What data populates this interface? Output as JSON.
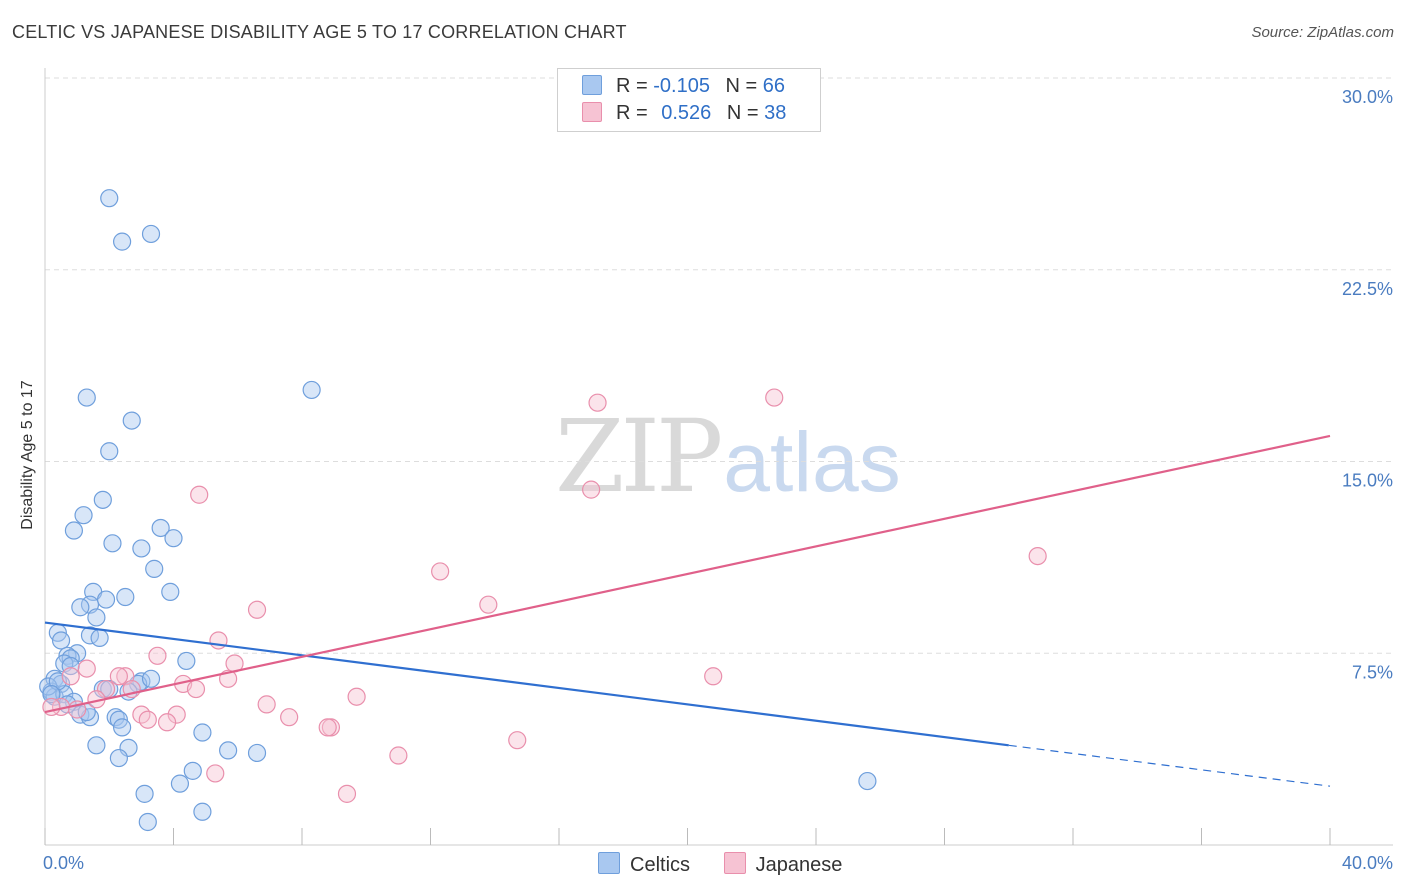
{
  "title": "CELTIC VS JAPANESE DISABILITY AGE 5 TO 17 CORRELATION CHART",
  "source": "Source: ZipAtlas.com",
  "watermark": {
    "zip": "ZIP",
    "atlas": "atlas"
  },
  "legend": {
    "rows": [
      {
        "r_label": "R =",
        "r_value": "-0.105",
        "n_label": "N =",
        "n_value": "66"
      },
      {
        "r_label": "R =",
        "r_value": "0.526",
        "n_label": "N =",
        "n_value": "38"
      }
    ]
  },
  "bottom_legend": {
    "celtics": "Celtics",
    "japanese": "Japanese"
  },
  "colors": {
    "celtics_fill": "#a9c8f0",
    "celtics_stroke": "#6f9fdc",
    "celtics_line": "#2f6fd0",
    "japanese_fill": "#f6c3d3",
    "japanese_stroke": "#e98fac",
    "japanese_line": "#e0608a",
    "tick_text": "#4a7cc0",
    "grid": "#dddddd"
  },
  "chart_data": {
    "type": "scatter",
    "title": "CELTIC VS JAPANESE DISABILITY AGE 5 TO 17 CORRELATION CHART",
    "xlabel": "",
    "ylabel": "Disability Age 5 to 17",
    "xlim": [
      0,
      40
    ],
    "ylim": [
      0,
      30
    ],
    "x_tick_labels": [
      "0.0%",
      "40.0%"
    ],
    "y_ticks": [
      7.5,
      15.0,
      22.5,
      30.0
    ],
    "y_tick_labels": [
      "7.5%",
      "15.0%",
      "22.5%",
      "30.0%"
    ],
    "series": [
      {
        "name": "Celtics",
        "r": -0.105,
        "n": 66,
        "trend": {
          "x0": 0,
          "y0": 8.7,
          "x1": 30.0,
          "y1": 3.9,
          "dash_x1": 40,
          "dash_y1": 2.3
        },
        "points": [
          [
            2.0,
            25.3
          ],
          [
            2.4,
            23.6
          ],
          [
            3.3,
            23.9
          ],
          [
            8.3,
            17.8
          ],
          [
            1.3,
            17.5
          ],
          [
            2.7,
            16.6
          ],
          [
            2.0,
            15.4
          ],
          [
            1.8,
            13.5
          ],
          [
            1.2,
            12.9
          ],
          [
            0.9,
            12.3
          ],
          [
            3.6,
            12.4
          ],
          [
            4.0,
            12.0
          ],
          [
            2.1,
            11.8
          ],
          [
            3.0,
            11.6
          ],
          [
            3.4,
            10.8
          ],
          [
            1.5,
            9.9
          ],
          [
            2.5,
            9.7
          ],
          [
            1.9,
            9.6
          ],
          [
            3.9,
            9.9
          ],
          [
            1.4,
            9.4
          ],
          [
            1.1,
            9.3
          ],
          [
            1.6,
            8.9
          ],
          [
            0.4,
            8.3
          ],
          [
            1.4,
            8.2
          ],
          [
            0.5,
            8.0
          ],
          [
            1.7,
            8.1
          ],
          [
            1.0,
            7.5
          ],
          [
            0.7,
            7.4
          ],
          [
            0.8,
            7.3
          ],
          [
            4.4,
            7.2
          ],
          [
            0.6,
            7.1
          ],
          [
            0.8,
            7.0
          ],
          [
            0.3,
            6.5
          ],
          [
            0.5,
            6.3
          ],
          [
            3.0,
            6.4
          ],
          [
            2.9,
            6.3
          ],
          [
            1.8,
            6.1
          ],
          [
            2.0,
            6.1
          ],
          [
            2.6,
            6.0
          ],
          [
            0.2,
            6.0
          ],
          [
            0.3,
            5.8
          ],
          [
            0.6,
            5.9
          ],
          [
            0.9,
            5.6
          ],
          [
            1.1,
            5.1
          ],
          [
            1.4,
            5.0
          ],
          [
            2.2,
            5.0
          ],
          [
            2.3,
            4.9
          ],
          [
            2.4,
            4.6
          ],
          [
            1.6,
            3.9
          ],
          [
            2.6,
            3.8
          ],
          [
            4.9,
            4.4
          ],
          [
            5.7,
            3.7
          ],
          [
            6.6,
            3.6
          ],
          [
            2.3,
            3.4
          ],
          [
            4.6,
            2.9
          ],
          [
            4.2,
            2.4
          ],
          [
            3.1,
            2.0
          ],
          [
            25.6,
            2.5
          ],
          [
            4.9,
            1.3
          ],
          [
            3.2,
            0.9
          ],
          [
            0.1,
            6.2
          ],
          [
            0.4,
            6.4
          ],
          [
            0.7,
            5.5
          ],
          [
            1.3,
            5.2
          ],
          [
            0.2,
            5.9
          ],
          [
            3.3,
            6.5
          ]
        ]
      },
      {
        "name": "Japanese",
        "r": 0.526,
        "n": 38,
        "trend": {
          "x0": 0,
          "y0": 5.2,
          "x1": 40,
          "y1": 16.0
        },
        "points": [
          [
            22.7,
            17.5
          ],
          [
            17.2,
            17.3
          ],
          [
            4.8,
            13.7
          ],
          [
            17.0,
            13.9
          ],
          [
            30.9,
            11.3
          ],
          [
            12.3,
            10.7
          ],
          [
            13.8,
            9.4
          ],
          [
            6.6,
            9.2
          ],
          [
            5.4,
            8.0
          ],
          [
            3.5,
            7.4
          ],
          [
            5.9,
            7.1
          ],
          [
            1.3,
            6.9
          ],
          [
            2.5,
            6.6
          ],
          [
            2.3,
            6.6
          ],
          [
            5.7,
            6.5
          ],
          [
            0.8,
            6.6
          ],
          [
            4.3,
            6.3
          ],
          [
            20.8,
            6.6
          ],
          [
            4.7,
            6.1
          ],
          [
            1.9,
            6.1
          ],
          [
            2.7,
            6.1
          ],
          [
            9.7,
            5.8
          ],
          [
            1.6,
            5.7
          ],
          [
            6.9,
            5.5
          ],
          [
            0.5,
            5.4
          ],
          [
            1.0,
            5.3
          ],
          [
            3.0,
            5.1
          ],
          [
            4.1,
            5.1
          ],
          [
            7.6,
            5.0
          ],
          [
            3.2,
            4.9
          ],
          [
            3.8,
            4.8
          ],
          [
            8.9,
            4.6
          ],
          [
            8.8,
            4.6
          ],
          [
            14.7,
            4.1
          ],
          [
            11.0,
            3.5
          ],
          [
            5.3,
            2.8
          ],
          [
            9.4,
            2.0
          ],
          [
            0.2,
            5.4
          ]
        ]
      }
    ]
  }
}
